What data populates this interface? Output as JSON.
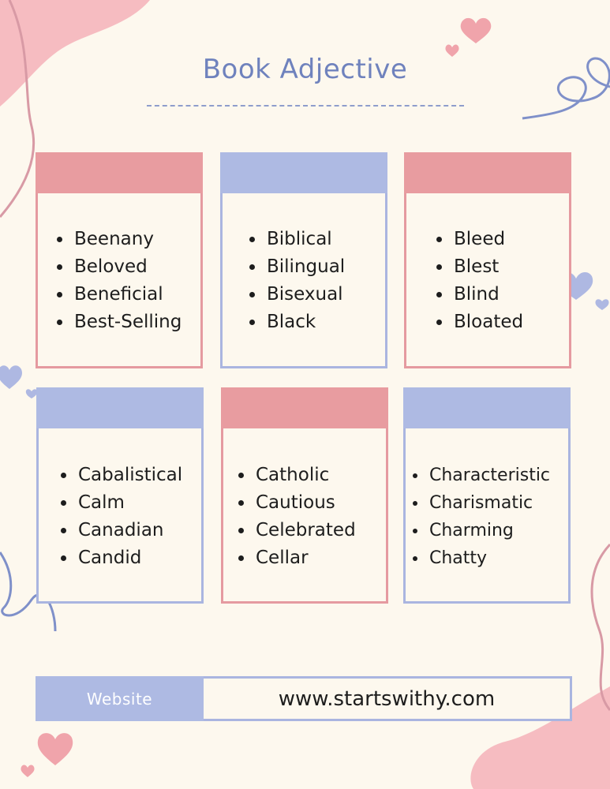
{
  "title": "Book Adjective",
  "cards": [
    {
      "items": [
        "Beenany",
        "Beloved",
        "Beneficial",
        "Best-Selling"
      ]
    },
    {
      "items": [
        "Biblical",
        "Bilingual",
        "Bisexual",
        "Black"
      ]
    },
    {
      "items": [
        "Bleed",
        "Blest",
        "Blind",
        "Bloated"
      ]
    },
    {
      "items": [
        "Cabalistical",
        "Calm",
        "Canadian",
        "Candid"
      ]
    },
    {
      "items": [
        "Catholic",
        "Cautious",
        "Celebrated",
        "Cellar"
      ]
    },
    {
      "items": [
        "Characteristic",
        "Charismatic",
        "Charming",
        "Chatty"
      ]
    }
  ],
  "footer": {
    "label": "Website",
    "value": "www.startswithy.com"
  },
  "colors": {
    "background": "#fdf8ee",
    "pink_accent": "#e89ca0",
    "blue_accent": "#aebae3",
    "title": "#6f82bd"
  }
}
